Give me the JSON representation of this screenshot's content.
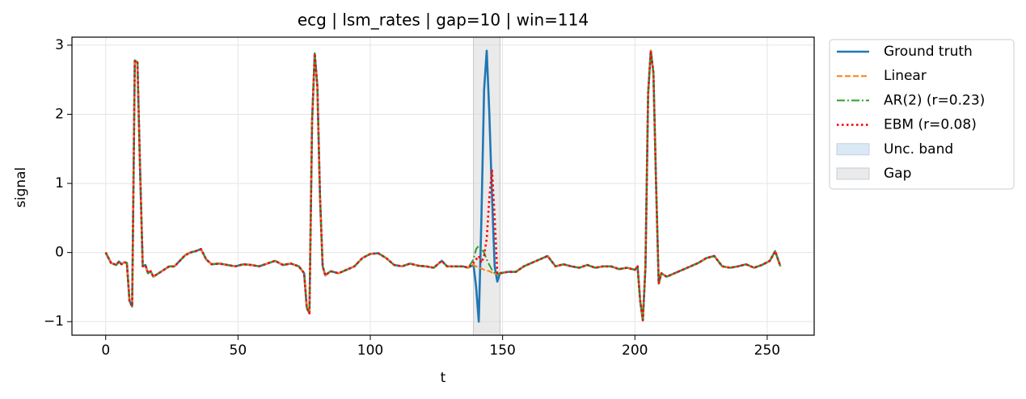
{
  "chart_data": {
    "type": "line",
    "title": "ecg | lsm_rates | gap=10 | win=114",
    "x_label": "t",
    "y_label": "signal",
    "xlim": [
      -12.75,
      267.75
    ],
    "ylim": [
      -1.196,
      3.116
    ],
    "xticks": [
      0,
      50,
      100,
      150,
      200,
      250
    ],
    "yticks": [
      {
        "value": -1,
        "label": "−1"
      },
      0,
      1,
      2,
      3
    ],
    "grid": true,
    "legend": "outside-upper-right",
    "gap": {
      "name": "Gap",
      "range": [
        139,
        149
      ],
      "color": "#d9d9d9"
    },
    "band": {
      "name": "Unc. band",
      "color": "#cfe2f3"
    },
    "x": [
      0,
      2,
      4,
      5,
      6,
      7,
      8,
      9,
      10,
      11,
      12,
      13,
      14,
      15,
      16,
      17,
      18,
      20,
      22,
      24,
      26,
      28,
      30,
      32,
      34,
      36,
      38,
      40,
      43,
      46,
      49,
      52,
      55,
      58,
      61,
      64,
      67,
      70,
      73,
      75,
      76,
      77,
      78,
      79,
      80,
      81,
      82,
      83,
      85,
      88,
      91,
      94,
      97,
      100,
      103,
      106,
      109,
      112,
      115,
      118,
      121,
      124,
      127,
      129,
      132,
      135,
      137,
      139,
      140,
      141,
      142,
      143,
      144,
      145,
      146,
      147,
      148,
      149,
      152,
      155,
      158,
      161,
      164,
      167,
      170,
      173,
      176,
      179,
      182,
      185,
      188,
      191,
      194,
      197,
      200,
      201,
      202,
      203,
      204,
      205,
      206,
      207,
      208,
      209,
      210,
      212,
      215,
      218,
      221,
      224,
      227,
      230,
      233,
      236,
      239,
      242,
      245,
      248,
      251,
      253,
      255
    ],
    "series": [
      {
        "name": "Ground truth",
        "color": "#1f77b4",
        "linestyle": "solid",
        "width": 2.6,
        "values": [
          0,
          -0.15,
          -0.18,
          -0.13,
          -0.17,
          -0.14,
          -0.15,
          -0.7,
          -0.78,
          2.78,
          2.75,
          1.2,
          -0.2,
          -0.18,
          -0.3,
          -0.27,
          -0.35,
          -0.3,
          -0.25,
          -0.2,
          -0.2,
          -0.12,
          -0.04,
          0,
          0.02,
          0.05,
          -0.1,
          -0.17,
          -0.16,
          -0.18,
          -0.2,
          -0.17,
          -0.18,
          -0.2,
          -0.16,
          -0.12,
          -0.18,
          -0.16,
          -0.2,
          -0.3,
          -0.8,
          -0.88,
          1.9,
          2.88,
          2.4,
          0.8,
          -0.2,
          -0.33,
          -0.27,
          -0.3,
          -0.25,
          -0.2,
          -0.08,
          -0.02,
          -0.01,
          -0.08,
          -0.18,
          -0.2,
          -0.16,
          -0.19,
          -0.2,
          -0.22,
          -0.12,
          -0.2,
          -0.2,
          -0.2,
          -0.22,
          -0.18,
          -0.5,
          -1.0,
          0.5,
          2.35,
          2.92,
          2.0,
          0.8,
          -0.2,
          -0.42,
          -0.3,
          -0.28,
          -0.28,
          -0.2,
          -0.15,
          -0.1,
          -0.05,
          -0.2,
          -0.17,
          -0.2,
          -0.22,
          -0.18,
          -0.22,
          -0.2,
          -0.2,
          -0.24,
          -0.22,
          -0.25,
          -0.2,
          -0.7,
          -0.98,
          -0.2,
          2.3,
          2.92,
          2.6,
          1.0,
          -0.45,
          -0.3,
          -0.35,
          -0.3,
          -0.25,
          -0.2,
          -0.15,
          -0.08,
          -0.05,
          -0.2,
          -0.22,
          -0.2,
          -0.17,
          -0.22,
          -0.18,
          -0.12,
          0.02,
          -0.2
        ]
      },
      {
        "name": "Linear",
        "color": "#ff7f0e",
        "linestyle": "dashed",
        "width": 2,
        "values": [
          0,
          -0.15,
          -0.18,
          -0.13,
          -0.17,
          -0.14,
          -0.15,
          -0.7,
          -0.78,
          2.78,
          2.75,
          1.2,
          -0.2,
          -0.18,
          -0.3,
          -0.27,
          -0.35,
          -0.3,
          -0.25,
          -0.2,
          -0.2,
          -0.12,
          -0.04,
          0,
          0.02,
          0.05,
          -0.1,
          -0.17,
          -0.16,
          -0.18,
          -0.2,
          -0.17,
          -0.18,
          -0.2,
          -0.16,
          -0.12,
          -0.18,
          -0.16,
          -0.2,
          -0.3,
          -0.8,
          -0.88,
          1.9,
          2.88,
          2.4,
          0.8,
          -0.2,
          -0.33,
          -0.27,
          -0.3,
          -0.25,
          -0.2,
          -0.08,
          -0.02,
          -0.01,
          -0.08,
          -0.18,
          -0.2,
          -0.16,
          -0.19,
          -0.2,
          -0.22,
          -0.12,
          -0.2,
          -0.2,
          -0.2,
          -0.22,
          -0.18,
          -0.2,
          -0.22,
          -0.23,
          -0.25,
          -0.26,
          -0.27,
          -0.29,
          -0.3,
          -0.32,
          -0.3,
          -0.28,
          -0.28,
          -0.2,
          -0.15,
          -0.1,
          -0.05,
          -0.2,
          -0.17,
          -0.2,
          -0.22,
          -0.18,
          -0.22,
          -0.2,
          -0.2,
          -0.24,
          -0.22,
          -0.25,
          -0.2,
          -0.7,
          -0.98,
          -0.2,
          2.3,
          2.92,
          2.6,
          1.0,
          -0.45,
          -0.3,
          -0.35,
          -0.3,
          -0.25,
          -0.2,
          -0.15,
          -0.08,
          -0.05,
          -0.2,
          -0.22,
          -0.2,
          -0.17,
          -0.22,
          -0.18,
          -0.12,
          0.02,
          -0.2
        ]
      },
      {
        "name": "AR(2) (r=0.23)",
        "color": "#2ca02c",
        "linestyle": "dashdot",
        "width": 2,
        "values": [
          0,
          -0.15,
          -0.18,
          -0.13,
          -0.17,
          -0.14,
          -0.15,
          -0.7,
          -0.78,
          2.78,
          2.75,
          1.2,
          -0.2,
          -0.18,
          -0.3,
          -0.27,
          -0.35,
          -0.3,
          -0.25,
          -0.2,
          -0.2,
          -0.12,
          -0.04,
          0,
          0.02,
          0.05,
          -0.1,
          -0.17,
          -0.16,
          -0.18,
          -0.2,
          -0.17,
          -0.18,
          -0.2,
          -0.16,
          -0.12,
          -0.18,
          -0.16,
          -0.2,
          -0.3,
          -0.8,
          -0.88,
          1.9,
          2.88,
          2.4,
          0.8,
          -0.2,
          -0.33,
          -0.27,
          -0.3,
          -0.25,
          -0.2,
          -0.08,
          -0.02,
          -0.01,
          -0.08,
          -0.18,
          -0.2,
          -0.16,
          -0.19,
          -0.2,
          -0.22,
          -0.12,
          -0.2,
          -0.2,
          -0.2,
          -0.22,
          -0.1,
          0.05,
          0.1,
          0.05,
          0,
          -0.1,
          -0.18,
          -0.25,
          -0.3,
          -0.32,
          -0.3,
          -0.28,
          -0.28,
          -0.2,
          -0.15,
          -0.1,
          -0.05,
          -0.2,
          -0.17,
          -0.2,
          -0.22,
          -0.18,
          -0.22,
          -0.2,
          -0.2,
          -0.24,
          -0.22,
          -0.25,
          -0.2,
          -0.7,
          -0.98,
          -0.2,
          2.3,
          2.92,
          2.6,
          1.0,
          -0.45,
          -0.3,
          -0.35,
          -0.3,
          -0.25,
          -0.2,
          -0.15,
          -0.08,
          -0.05,
          -0.2,
          -0.22,
          -0.2,
          -0.17,
          -0.22,
          -0.18,
          -0.12,
          0.02,
          -0.2
        ]
      },
      {
        "name": "EBM (r=0.08)",
        "color": "#ff0000",
        "linestyle": "dotted",
        "width": 2.6,
        "values": [
          0,
          -0.15,
          -0.18,
          -0.13,
          -0.17,
          -0.14,
          -0.15,
          -0.7,
          -0.78,
          2.78,
          2.75,
          1.2,
          -0.2,
          -0.18,
          -0.3,
          -0.27,
          -0.35,
          -0.3,
          -0.25,
          -0.2,
          -0.2,
          -0.12,
          -0.04,
          0,
          0.02,
          0.05,
          -0.1,
          -0.17,
          -0.16,
          -0.18,
          -0.2,
          -0.17,
          -0.18,
          -0.2,
          -0.16,
          -0.12,
          -0.18,
          -0.16,
          -0.2,
          -0.3,
          -0.8,
          -0.88,
          1.9,
          2.88,
          2.4,
          0.8,
          -0.2,
          -0.33,
          -0.27,
          -0.3,
          -0.25,
          -0.2,
          -0.08,
          -0.02,
          -0.01,
          -0.08,
          -0.18,
          -0.2,
          -0.16,
          -0.19,
          -0.2,
          -0.22,
          -0.12,
          -0.2,
          -0.2,
          -0.2,
          -0.22,
          -0.15,
          -0.1,
          -0.05,
          -0.15,
          -0.05,
          0.2,
          0.8,
          1.2,
          0.5,
          -0.3,
          -0.3,
          -0.28,
          -0.28,
          -0.2,
          -0.15,
          -0.1,
          -0.05,
          -0.2,
          -0.17,
          -0.2,
          -0.22,
          -0.18,
          -0.22,
          -0.2,
          -0.2,
          -0.24,
          -0.22,
          -0.25,
          -0.2,
          -0.7,
          -0.98,
          -0.2,
          2.3,
          2.92,
          2.6,
          1.0,
          -0.45,
          -0.3,
          -0.35,
          -0.3,
          -0.25,
          -0.2,
          -0.15,
          -0.08,
          -0.05,
          -0.2,
          -0.22,
          -0.2,
          -0.17,
          -0.22,
          -0.18,
          -0.12,
          0.02,
          -0.2
        ]
      }
    ]
  }
}
